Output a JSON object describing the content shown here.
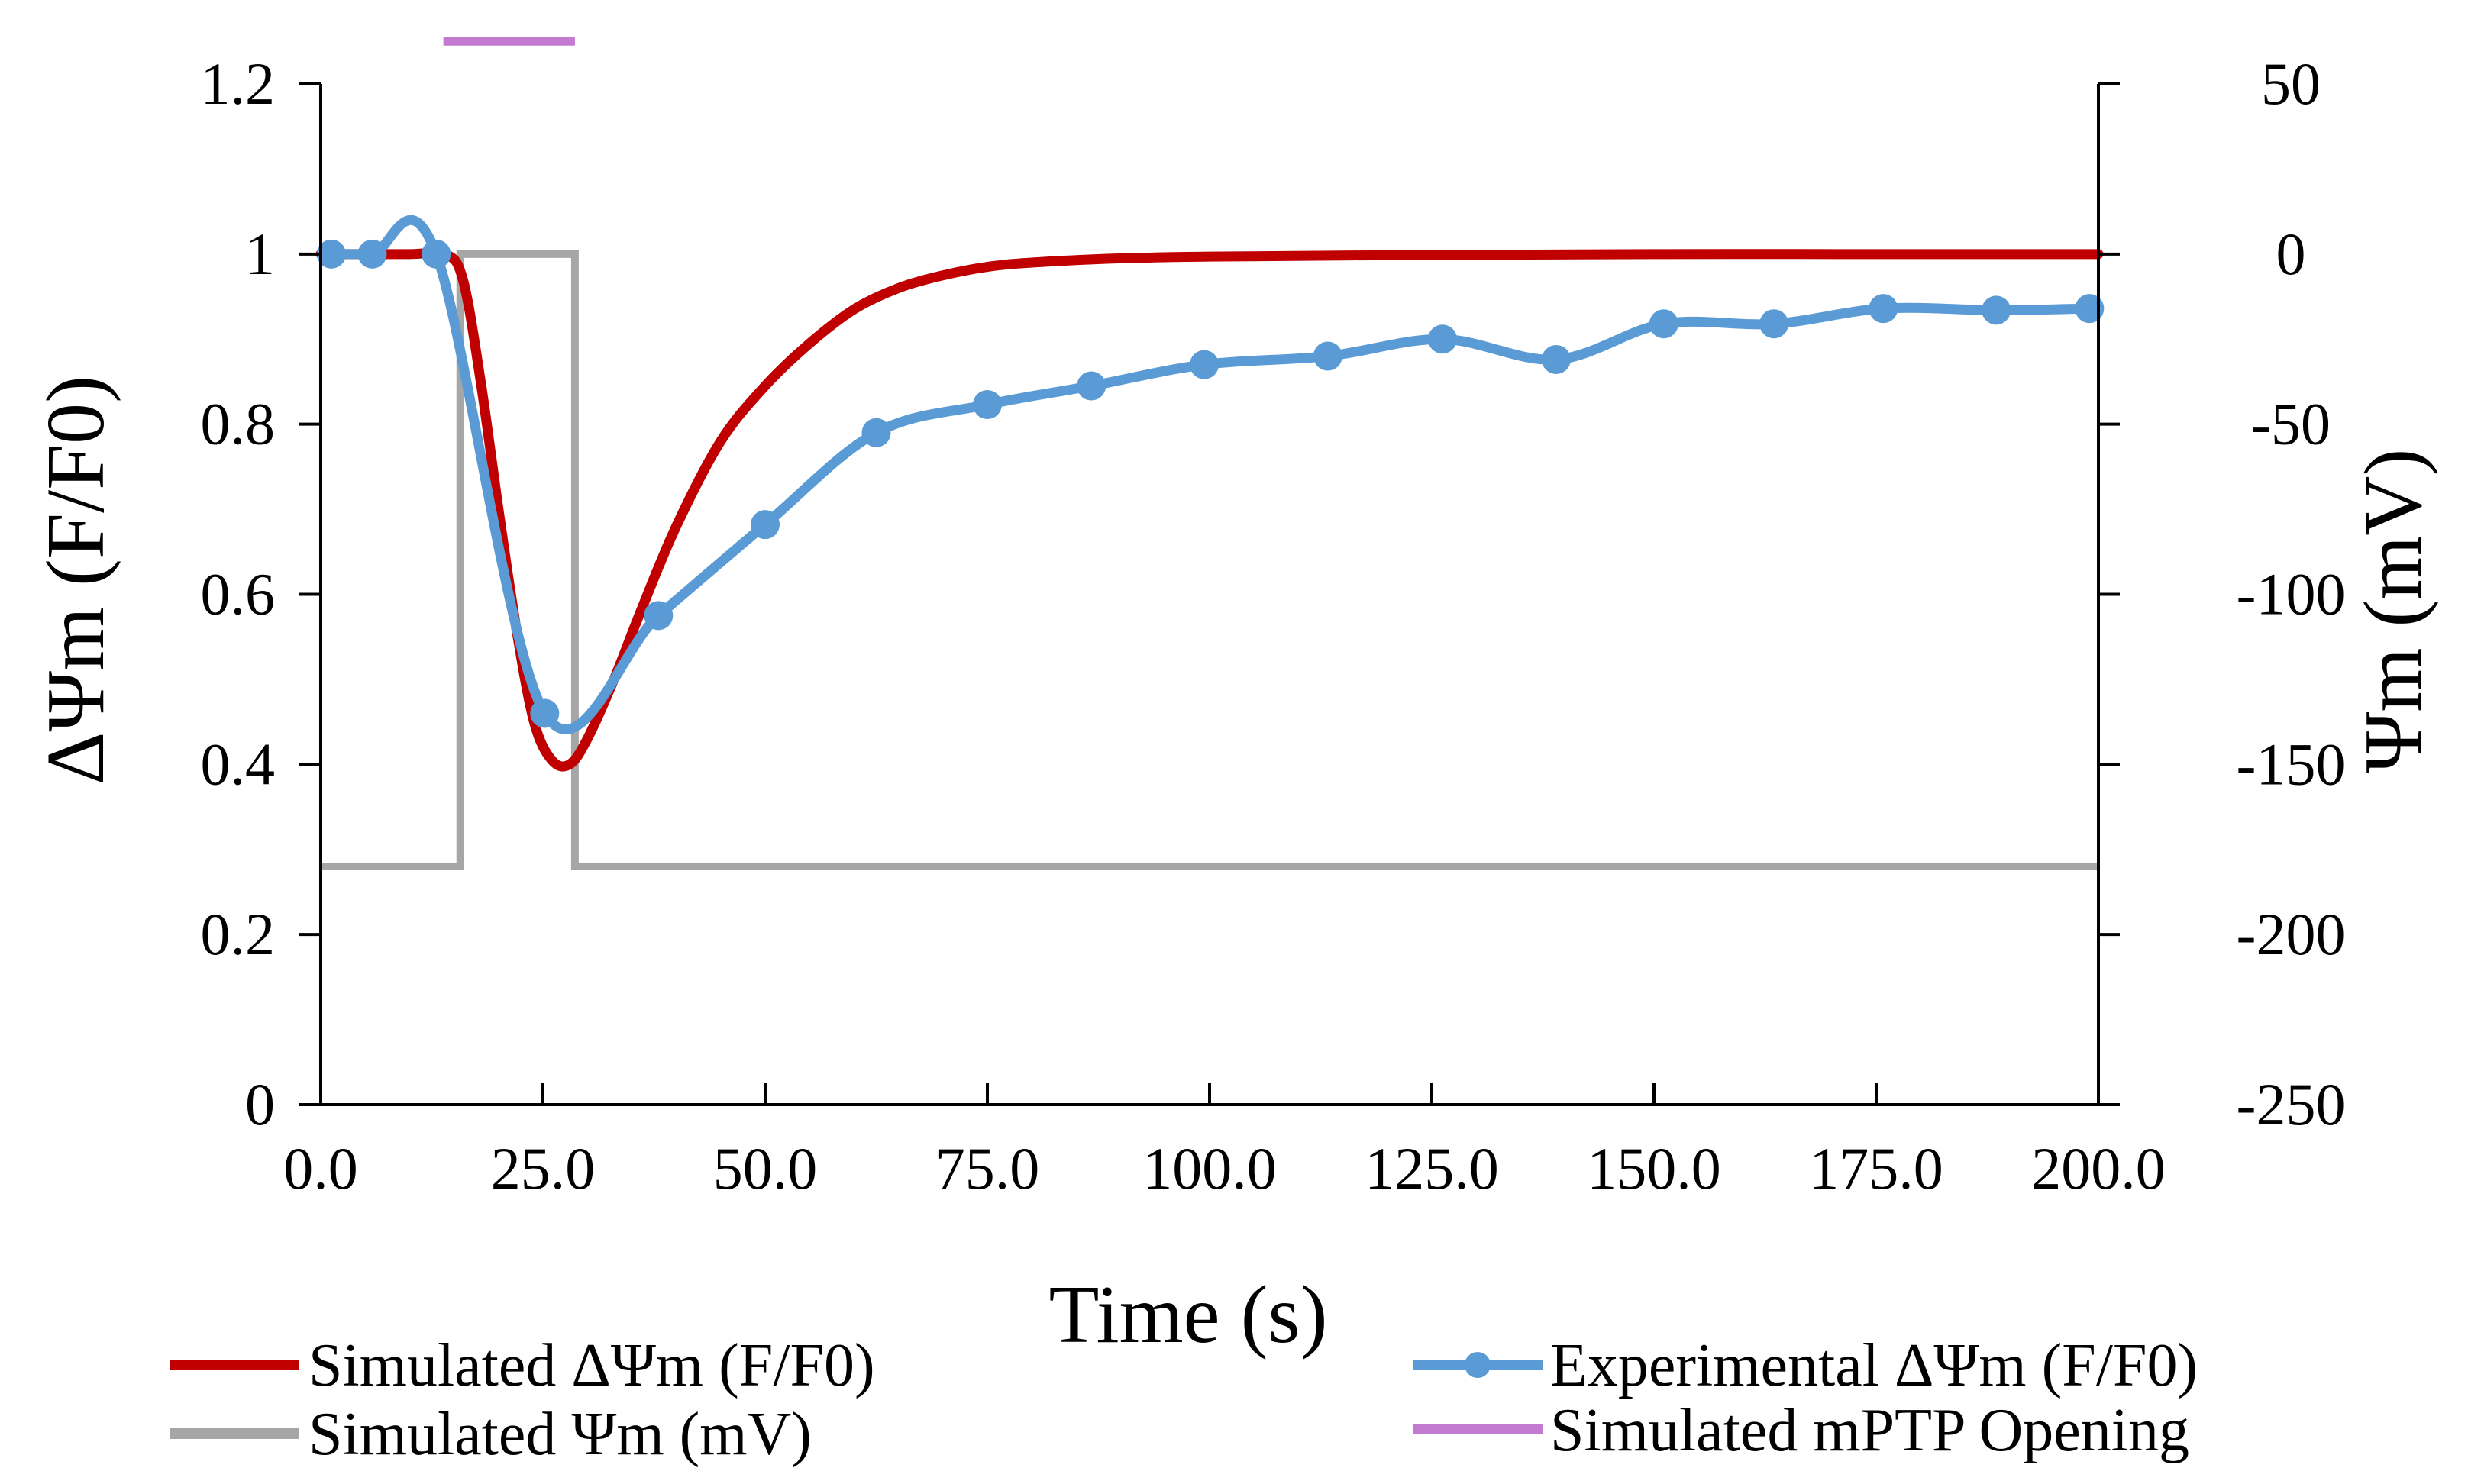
{
  "chart_data": {
    "type": "line",
    "title": "",
    "xlabel": "Time (s)",
    "ylabel_left": "ΔΨm (F/F0)",
    "ylabel_right": "Ψm (mV)",
    "xlim": [
      0,
      200
    ],
    "ylim_left": [
      0,
      1.2
    ],
    "ylim_right": [
      -250,
      50
    ],
    "grid": false,
    "x_ticks": [
      "0.0",
      "25.0",
      "50.0",
      "75.0",
      "100.0",
      "125.0",
      "150.0",
      "175.0",
      "200.0"
    ],
    "y_left_ticks": [
      "0",
      "0.2",
      "0.4",
      "0.6",
      "0.8",
      "1",
      "1.2"
    ],
    "y_right_ticks": [
      "-250",
      "-200",
      "-150",
      "-100",
      "-50",
      "0",
      "50"
    ],
    "series": [
      {
        "name": "Simulated ΔΨm (F/F0)",
        "axis": "left",
        "color": "#c00000",
        "markers": false,
        "x": [
          0,
          10,
          14,
          16,
          18,
          20,
          22,
          24,
          26,
          28,
          30,
          33,
          36,
          40,
          45,
          50,
          55,
          60,
          65,
          70,
          75,
          80,
          90,
          100,
          125,
          150,
          175,
          200
        ],
        "y": [
          1.0,
          1.0,
          1.0,
          0.97,
          0.85,
          0.7,
          0.56,
          0.45,
          0.405,
          0.4,
          0.43,
          0.5,
          0.58,
          0.68,
          0.78,
          0.845,
          0.895,
          0.935,
          0.96,
          0.975,
          0.985,
          0.99,
          0.995,
          0.997,
          0.999,
          1.0,
          1.0,
          1.0
        ]
      },
      {
        "name": "Experimental ΔΨm (F/F0)",
        "axis": "left",
        "color": "#5b9bd5",
        "markers": true,
        "x": [
          1.2,
          5.8,
          13.0,
          25.2,
          38.0,
          50.0,
          62.5,
          75.0,
          86.7,
          99.4,
          113.3,
          126.2,
          139.0,
          151.1,
          163.5,
          175.8,
          188.5,
          199.0
        ],
        "y": [
          1.0,
          1.0,
          1.0,
          0.46,
          0.575,
          0.682,
          0.79,
          0.823,
          0.845,
          0.87,
          0.88,
          0.9,
          0.876,
          0.918,
          0.918,
          0.936,
          0.934,
          0.936
        ]
      },
      {
        "name": "Simulated Ψm (mV)",
        "axis": "right",
        "color": "#a6a6a6",
        "markers": false,
        "x": [
          0,
          15.7,
          15.7,
          28.6,
          28.6,
          200
        ],
        "y": [
          -180,
          -180,
          0,
          0,
          -180,
          -180
        ]
      },
      {
        "name": "Simulated mPTP Opening",
        "axis": "left",
        "color": "#c27bd1",
        "markers": false,
        "x": [
          13.8,
          28.6
        ],
        "y": [
          1.25,
          1.25
        ]
      }
    ],
    "legend": {
      "position": "bottom",
      "items": [
        {
          "label": "Simulated ΔΨm (F/F0)",
          "color": "#c00000",
          "marker": false
        },
        {
          "label": "Experimental ΔΨm (F/F0)",
          "color": "#5b9bd5",
          "marker": true
        },
        {
          "label": "Simulated Ψm (mV)",
          "color": "#a6a6a6",
          "marker": false
        },
        {
          "label": "Simulated mPTP Opening",
          "color": "#c27bd1",
          "marker": false
        }
      ]
    }
  }
}
